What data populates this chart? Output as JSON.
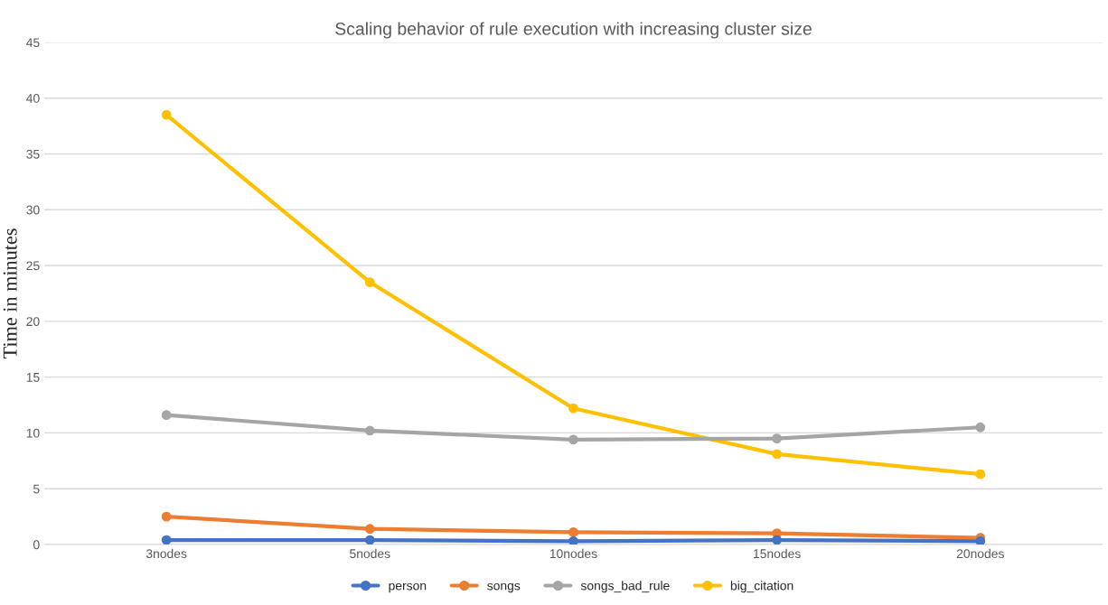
{
  "chart_data": {
    "type": "line",
    "title": "Scaling behavior of rule execution with increasing cluster size",
    "ylabel": "Time in minutes",
    "categories": [
      "3nodes",
      "5nodes",
      "10nodes",
      "15nodes",
      "20nodes"
    ],
    "series": [
      {
        "name": "person",
        "color": "#4472c4",
        "values": [
          0.4,
          0.4,
          0.3,
          0.4,
          0.3
        ]
      },
      {
        "name": "songs",
        "color": "#ed7d31",
        "values": [
          2.5,
          1.4,
          1.1,
          1.0,
          0.6
        ]
      },
      {
        "name": "songs_bad_rule",
        "color": "#a5a5a5",
        "values": [
          11.6,
          10.2,
          9.4,
          9.5,
          10.5
        ]
      },
      {
        "name": "big_citation",
        "color": "#ffc000",
        "values": [
          38.5,
          23.5,
          12.2,
          8.1,
          6.3
        ]
      }
    ],
    "ylim": [
      0,
      45
    ],
    "yticks": [
      0,
      5,
      10,
      15,
      20,
      25,
      30,
      35,
      40,
      45
    ],
    "grid": "y",
    "legend": "bottom",
    "marker": "circle",
    "line_style": "solid"
  }
}
